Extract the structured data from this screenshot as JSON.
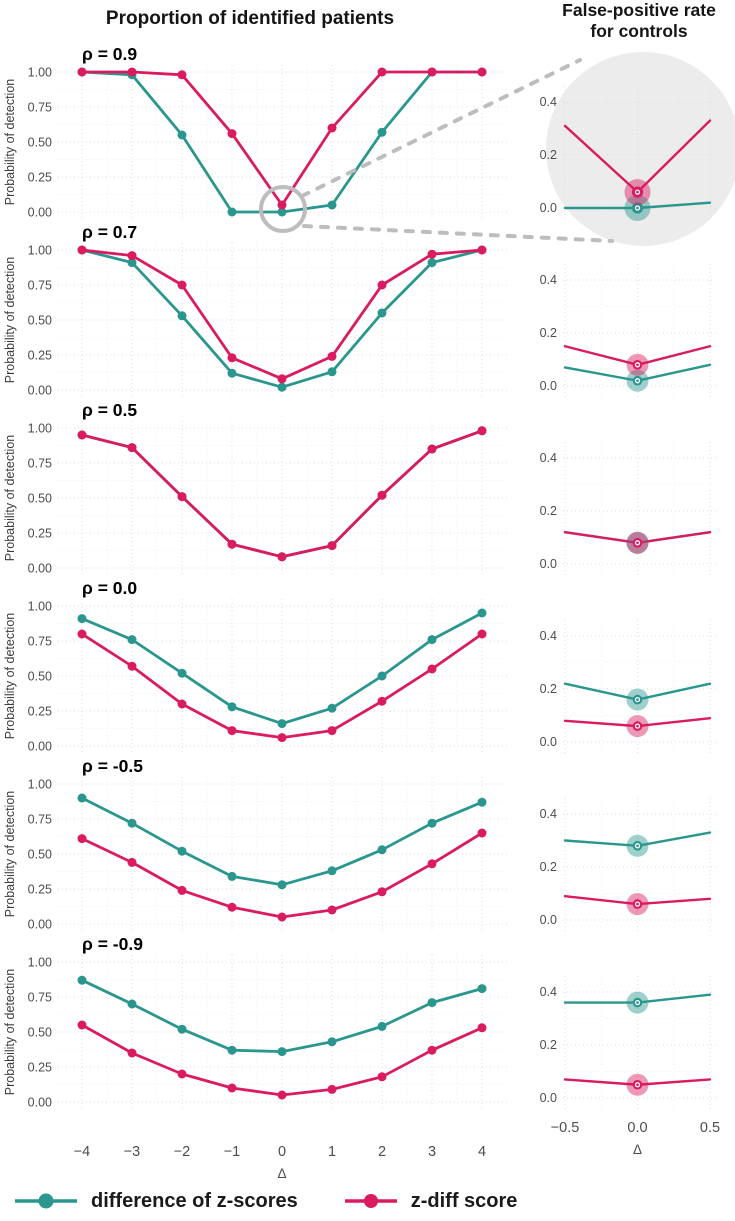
{
  "titles": {
    "left": "Proportion of identified patients",
    "right": "False-positive rate for controls"
  },
  "legend": {
    "items": [
      {
        "label": "difference of z-scores",
        "series": "difference_of_z_scores"
      },
      {
        "label": "z-diff score",
        "series": "z_diff_score"
      }
    ]
  },
  "colors": {
    "difference_of_z_scores": "#2a968e",
    "z_diff_score": "#da1b5f",
    "grid_major": "#dcdcdc",
    "grid_minor": "#f0f0f0",
    "tick_text": "#4d4d4d",
    "axis_text": "#3c3c3c",
    "annotation": "#bdbdbd",
    "inset_circle_bg": "#ececec",
    "title_text": "#151515"
  },
  "axes": {
    "left": {
      "ylabel": "Probability of detection",
      "xlabel": "Δ",
      "x_tick_values": [
        -4,
        -3,
        -2,
        -1,
        0,
        1,
        2,
        3,
        4
      ],
      "x_tick_labels": [
        "−4",
        "−3",
        "−2",
        "−1",
        "0",
        "1",
        "2",
        "3",
        "4"
      ],
      "y_tick_values": [
        1.0,
        0.75,
        0.5,
        0.25,
        0.0
      ],
      "y_tick_labels": [
        "1.00",
        "0.75",
        "0.50",
        "0.25",
        "0.00"
      ],
      "ylim": [
        0,
        1
      ]
    },
    "right": {
      "xlabel": "Δ",
      "x_tick_values": [
        -0.5,
        0,
        0.5
      ],
      "x_tick_labels": [
        "−0.5",
        "0.0",
        "0.5"
      ],
      "y_tick_values": [
        0.4,
        0.2,
        0.0
      ],
      "y_tick_labels": [
        "0.4",
        "0.2",
        "0.0"
      ],
      "ylim": [
        0,
        0.45
      ]
    }
  },
  "chart_data": {
    "type": "line",
    "x_left": [
      -4,
      -3,
      -2,
      -1,
      0,
      1,
      2,
      3,
      4
    ],
    "x_right": [
      -0.5,
      0,
      0.5
    ],
    "series_names": [
      "difference of z-scores",
      "z-diff score"
    ],
    "panels": [
      {
        "rho_label": "ρ = 0.9",
        "zoom_inset": true,
        "left": {
          "difference_of_z_scores": [
            1.0,
            0.98,
            0.55,
            0.0,
            0.0,
            0.05,
            0.57,
            1.0,
            1.0
          ],
          "z_diff_score": [
            1.0,
            1.0,
            0.98,
            0.56,
            0.05,
            0.6,
            1.0,
            1.0,
            1.0
          ]
        },
        "right": {
          "difference_of_z_scores": [
            0.0,
            0.0,
            0.02
          ],
          "z_diff_score": [
            0.31,
            0.06,
            0.33
          ]
        }
      },
      {
        "rho_label": "ρ = 0.7",
        "zoom_inset": false,
        "left": {
          "difference_of_z_scores": [
            1.0,
            0.91,
            0.53,
            0.12,
            0.02,
            0.13,
            0.55,
            0.91,
            1.0
          ],
          "z_diff_score": [
            1.0,
            0.96,
            0.75,
            0.23,
            0.08,
            0.24,
            0.75,
            0.97,
            1.0
          ]
        },
        "right": {
          "difference_of_z_scores": [
            0.07,
            0.02,
            0.08
          ],
          "z_diff_score": [
            0.15,
            0.08,
            0.15
          ]
        }
      },
      {
        "rho_label": "ρ = 0.5",
        "zoom_inset": false,
        "left": {
          "difference_of_z_scores": [
            0.95,
            0.86,
            0.51,
            0.17,
            0.08,
            0.16,
            0.52,
            0.85,
            0.98
          ],
          "z_diff_score": [
            0.95,
            0.86,
            0.51,
            0.17,
            0.08,
            0.16,
            0.52,
            0.85,
            0.98
          ]
        },
        "right": {
          "difference_of_z_scores": [
            0.12,
            0.08,
            0.12
          ],
          "z_diff_score": [
            0.12,
            0.08,
            0.12
          ]
        }
      },
      {
        "rho_label": "ρ = 0.0",
        "zoom_inset": false,
        "left": {
          "difference_of_z_scores": [
            0.91,
            0.76,
            0.52,
            0.28,
            0.16,
            0.27,
            0.5,
            0.76,
            0.95
          ],
          "z_diff_score": [
            0.8,
            0.57,
            0.3,
            0.11,
            0.06,
            0.11,
            0.32,
            0.55,
            0.8
          ]
        },
        "right": {
          "difference_of_z_scores": [
            0.22,
            0.16,
            0.22
          ],
          "z_diff_score": [
            0.08,
            0.06,
            0.09
          ]
        }
      },
      {
        "rho_label": "ρ = -0.5",
        "zoom_inset": false,
        "left": {
          "difference_of_z_scores": [
            0.9,
            0.72,
            0.52,
            0.34,
            0.28,
            0.38,
            0.53,
            0.72,
            0.87
          ],
          "z_diff_score": [
            0.61,
            0.44,
            0.24,
            0.12,
            0.05,
            0.1,
            0.23,
            0.43,
            0.65
          ]
        },
        "right": {
          "difference_of_z_scores": [
            0.3,
            0.28,
            0.33
          ],
          "z_diff_score": [
            0.09,
            0.06,
            0.08
          ]
        }
      },
      {
        "rho_label": "ρ = -0.9",
        "zoom_inset": false,
        "left": {
          "difference_of_z_scores": [
            0.87,
            0.7,
            0.52,
            0.37,
            0.36,
            0.43,
            0.54,
            0.71,
            0.81
          ],
          "z_diff_score": [
            0.55,
            0.35,
            0.2,
            0.1,
            0.05,
            0.09,
            0.18,
            0.37,
            0.53
          ]
        },
        "right": {
          "difference_of_z_scores": [
            0.36,
            0.36,
            0.39
          ],
          "z_diff_score": [
            0.07,
            0.05,
            0.07
          ]
        }
      }
    ]
  }
}
